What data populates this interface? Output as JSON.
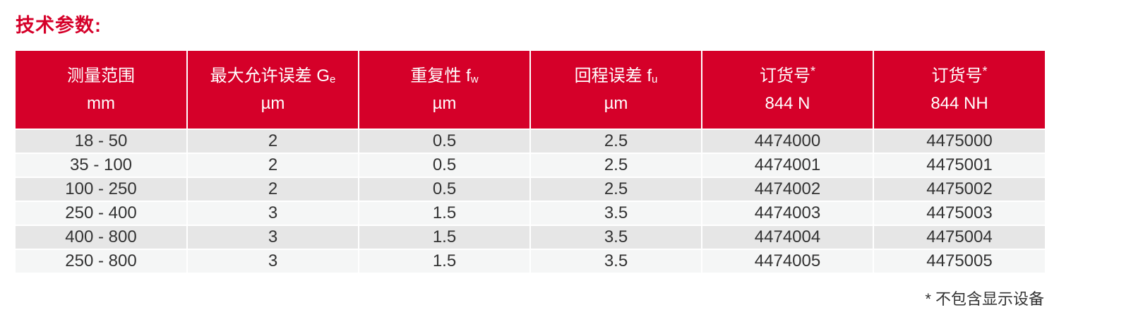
{
  "title": "技术参数:",
  "colors": {
    "header_bg": "#d50029",
    "row_odd": "#e6e6e6",
    "row_even": "#f5f6f6",
    "title": "#d50029"
  },
  "table": {
    "headers": [
      {
        "line1": "测量范围",
        "sub": "",
        "sup": "",
        "line2": "mm"
      },
      {
        "line1": "最大允许误差 G",
        "sub": "e",
        "sup": "",
        "line2": "µm"
      },
      {
        "line1": "重复性 f",
        "sub": "w",
        "sup": "",
        "line2": "µm"
      },
      {
        "line1": "回程误差 f",
        "sub": "u",
        "sup": "",
        "line2": "µm"
      },
      {
        "line1": "订货号",
        "sub": "",
        "sup": "*",
        "line2": "844 N"
      },
      {
        "line1": "订货号",
        "sub": "",
        "sup": "*",
        "line2": "844 NH"
      }
    ],
    "rows": [
      [
        "18 - 50",
        "2",
        "0.5",
        "2.5",
        "4474000",
        "4475000"
      ],
      [
        "35 - 100",
        "2",
        "0.5",
        "2.5",
        "4474001",
        "4475001"
      ],
      [
        "100 - 250",
        "2",
        "0.5",
        "2.5",
        "4474002",
        "4475002"
      ],
      [
        "250 - 400",
        "3",
        "1.5",
        "3.5",
        "4474003",
        "4475003"
      ],
      [
        "400 - 800",
        "3",
        "1.5",
        "3.5",
        "4474004",
        "4475004"
      ],
      [
        "250 - 800",
        "3",
        "1.5",
        "3.5",
        "4474005",
        "4475005"
      ]
    ]
  },
  "footnote": "* 不包含显示设备"
}
